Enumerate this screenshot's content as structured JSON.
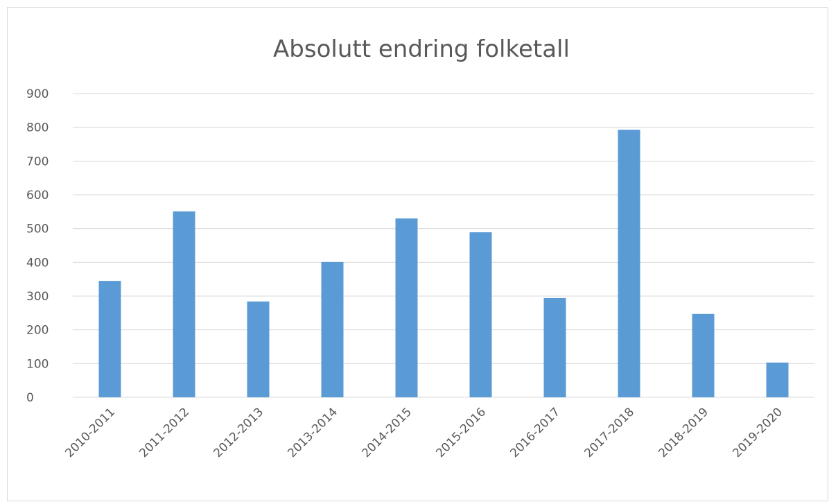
{
  "chart_data": {
    "type": "bar",
    "title": "Absolutt endring folketall",
    "categories": [
      "2010-2011",
      "2011-2012",
      "2012-2013",
      "2013-2014",
      "2014-2015",
      "2015-2016",
      "2016-2017",
      "2017-2018",
      "2018-2019",
      "2019-2020"
    ],
    "values": [
      345,
      551,
      284,
      401,
      530,
      489,
      294,
      793,
      247,
      103
    ],
    "color": "#5b9bd5",
    "ylim": [
      0,
      900
    ],
    "yticks": [
      0,
      100,
      200,
      300,
      400,
      500,
      600,
      700,
      800,
      900
    ],
    "grid": true
  }
}
